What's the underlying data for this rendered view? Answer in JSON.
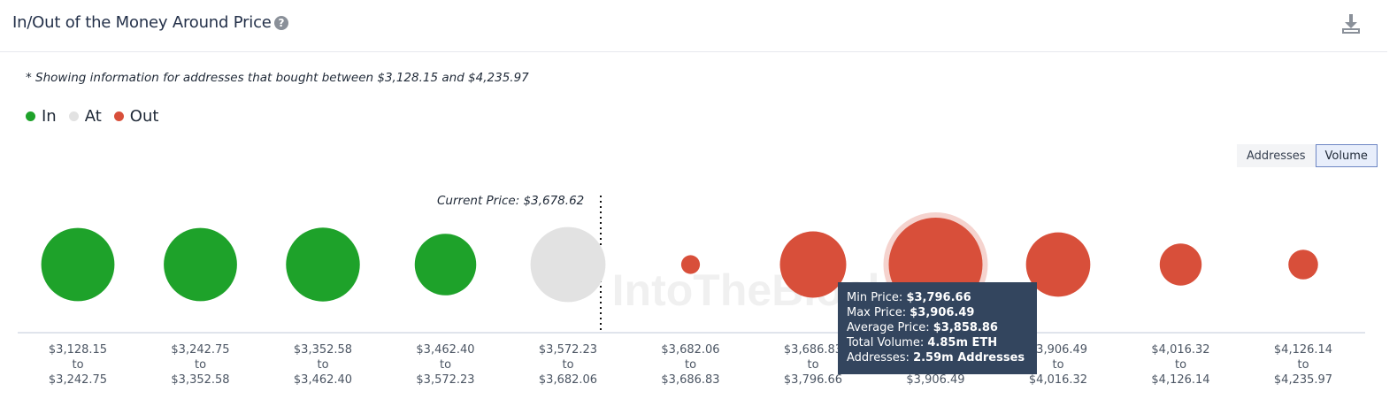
{
  "header": {
    "title": "In/Out of the Money Around Price",
    "help_glyph": "?",
    "download_icon": "download-icon"
  },
  "note": "* Showing information for addresses that bought between $3,128.15 and $4,235.97",
  "legend": [
    {
      "label": "In",
      "color": "#1ea22a"
    },
    {
      "label": "At",
      "color": "#e2e2e2"
    },
    {
      "label": "Out",
      "color": "#d84f3a"
    }
  ],
  "toggle": {
    "addresses_label": "Addresses",
    "volume_label": "Volume",
    "selected": "Volume"
  },
  "current_price_label": "Current Price: $3,678.62",
  "watermark": "IntoTheBlock",
  "tooltip": {
    "min_label": "Min Price:",
    "min_value": "$3,796.66",
    "max_label": "Max Price:",
    "max_value": "$3,906.49",
    "avg_label": "Average Price:",
    "avg_value": "$3,858.86",
    "vol_label": "Total Volume:",
    "vol_value": "4.85m ETH",
    "addr_label": "Addresses:",
    "addr_value": "2.59m Addresses"
  },
  "chart_data": {
    "type": "scatter",
    "title": "In/Out of the Money Around Price",
    "current_price": 3678.62,
    "highlighted_index": 7,
    "colors": {
      "In": "#1ea22a",
      "At": "#e2e2e2",
      "Out": "#d84f3a"
    },
    "buckets": [
      {
        "low": "$3,128.15",
        "high": "$3,242.75",
        "status": "In",
        "relative_volume": 0.61
      },
      {
        "low": "$3,242.75",
        "high": "$3,352.58",
        "status": "In",
        "relative_volume": 0.61
      },
      {
        "low": "$3,352.58",
        "high": "$3,462.40",
        "status": "In",
        "relative_volume": 0.62
      },
      {
        "low": "$3,462.40",
        "high": "$3,572.23",
        "status": "In",
        "relative_volume": 0.43
      },
      {
        "low": "$3,572.23",
        "high": "$3,682.06",
        "status": "At",
        "relative_volume": 0.64
      },
      {
        "low": "$3,682.06",
        "high": "$3,686.83",
        "status": "Out",
        "relative_volume": 0.04
      },
      {
        "low": "$3,686.83",
        "high": "$3,796.66",
        "status": "Out",
        "relative_volume": 0.5
      },
      {
        "low": "$3,796.66",
        "high": "$3,906.49",
        "status": "Out",
        "relative_volume": 1.0
      },
      {
        "low": "$3,906.49",
        "high": "$4,016.32",
        "status": "Out",
        "relative_volume": 0.47
      },
      {
        "low": "$4,016.32",
        "high": "$4,126.14",
        "status": "Out",
        "relative_volume": 0.2
      },
      {
        "low": "$4,126.14",
        "high": "$4,235.97",
        "status": "Out",
        "relative_volume": 0.1
      }
    ],
    "to_label": "to"
  }
}
